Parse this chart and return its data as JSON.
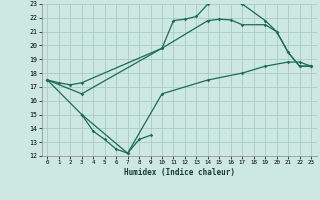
{
  "title": "",
  "xlabel": "Humidex (Indice chaleur)",
  "ylabel": "",
  "bg_color": "#cce8e0",
  "grid_color": "#aaccC4",
  "line_color": "#1a6b5a",
  "xlim": [
    -0.5,
    23.5
  ],
  "ylim": [
    12,
    23
  ],
  "xticks": [
    0,
    1,
    2,
    3,
    4,
    5,
    6,
    7,
    8,
    9,
    10,
    11,
    12,
    13,
    14,
    15,
    16,
    17,
    18,
    19,
    20,
    21,
    22,
    23
  ],
  "yticks": [
    12,
    13,
    14,
    15,
    16,
    17,
    18,
    19,
    20,
    21,
    22,
    23
  ],
  "line1_x": [
    0,
    1,
    2,
    3,
    10,
    14,
    15,
    16,
    17,
    19,
    20,
    21,
    22,
    23
  ],
  "line1_y": [
    17.5,
    17.3,
    17.15,
    17.3,
    19.8,
    21.8,
    21.9,
    21.85,
    21.5,
    21.5,
    21.0,
    19.5,
    18.5,
    18.5
  ],
  "line2_x": [
    0,
    3,
    10,
    11,
    12,
    13,
    14,
    15,
    16,
    17,
    19,
    20,
    21,
    22,
    23
  ],
  "line2_y": [
    17.5,
    16.5,
    19.8,
    21.8,
    21.9,
    22.1,
    23.0,
    23.2,
    23.2,
    23.0,
    21.8,
    21.0,
    19.5,
    18.5,
    18.5
  ],
  "line3_x": [
    0,
    3,
    7,
    10,
    14,
    17,
    19,
    21,
    22,
    23
  ],
  "line3_y": [
    17.5,
    15.0,
    12.2,
    16.5,
    17.5,
    18.0,
    18.5,
    18.8,
    18.8,
    18.5
  ],
  "line4_x": [
    3,
    4,
    5,
    6,
    7,
    8,
    9
  ],
  "line4_y": [
    15.0,
    13.8,
    13.2,
    12.5,
    12.2,
    13.2,
    13.5
  ]
}
